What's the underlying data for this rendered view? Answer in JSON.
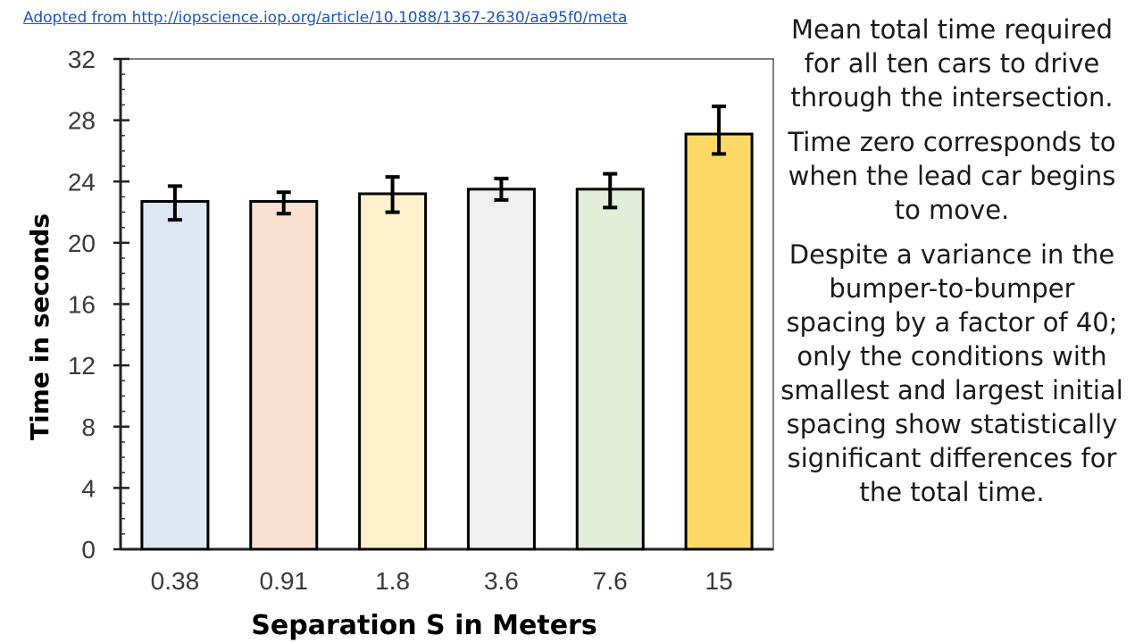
{
  "source": {
    "text": "Adopted from http://iopscience.iop.org/article/10.1088/1367-2630/aa95f0/meta"
  },
  "notes": [
    "Mean total time required for all ten cars to drive through the intersection.",
    "Time zero corresponds to when the lead car begins to move.",
    "Despite a variance in the bumper-to-bumper spacing by a factor of 40; only the conditions with smallest and largest initial spacing show statistically significant differences for the total time."
  ],
  "chart_data": {
    "type": "bar",
    "title": "",
    "xlabel": "Separation S in Meters",
    "ylabel": "Time in seconds",
    "categories": [
      "0.38",
      "0.91",
      "1.8",
      "3.6",
      "7.6",
      "15"
    ],
    "values": [
      22.7,
      22.7,
      23.2,
      23.5,
      23.5,
      27.1
    ],
    "error_low": [
      1.2,
      0.8,
      1.2,
      0.7,
      1.2,
      1.3
    ],
    "error_high": [
      1.0,
      0.6,
      1.1,
      0.7,
      1.0,
      1.8
    ],
    "ylim": [
      0,
      32
    ],
    "yticks": [
      0,
      4,
      8,
      12,
      16,
      20,
      24,
      28,
      32
    ],
    "bar_colors": [
      "#dde8f4",
      "#f8e0d0",
      "#fdf1cc",
      "#f0f0f0",
      "#e2eed8",
      "#fed966"
    ],
    "grid": false,
    "legend": "none"
  }
}
